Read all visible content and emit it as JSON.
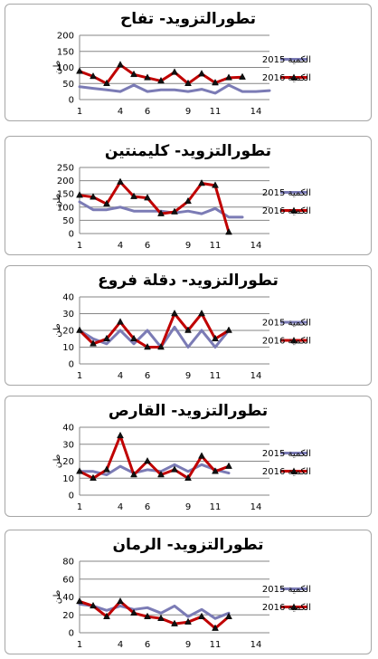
{
  "chart_data": [
    {
      "type": "line",
      "title": "تطورالتزويد- تفاح",
      "ylabel": "طن",
      "ylim": [
        0,
        200
      ],
      "yticks": [
        0,
        50,
        100,
        150,
        200
      ],
      "xticks": [
        1,
        4,
        6,
        9,
        11,
        14
      ],
      "x": [
        1,
        2,
        3,
        4,
        5,
        6,
        7,
        8,
        9,
        10,
        11,
        12,
        13,
        14,
        15
      ],
      "series": [
        {
          "name": "الكمية 2015",
          "color": "#7b7bb5",
          "marker": "none",
          "values": [
            40,
            35,
            30,
            25,
            45,
            25,
            30,
            30,
            25,
            32,
            20,
            45,
            25,
            25,
            28
          ]
        },
        {
          "name": "الكمية 2016",
          "color": "#c00000",
          "marker": "triangle",
          "values": [
            88,
            72,
            50,
            108,
            78,
            68,
            58,
            85,
            50,
            80,
            52,
            68,
            70,
            null,
            null
          ]
        }
      ]
    },
    {
      "type": "line",
      "title": "تطورالتزويد- كليمنتين",
      "ylabel": "طن",
      "ylim": [
        0,
        250
      ],
      "yticks": [
        0,
        50,
        100,
        150,
        200,
        250
      ],
      "xticks": [
        1,
        4,
        6,
        9,
        11,
        14
      ],
      "x": [
        1,
        2,
        3,
        4,
        5,
        6,
        7,
        8,
        9,
        10,
        11,
        12,
        13,
        14,
        15
      ],
      "series": [
        {
          "name": "الكمية 2015",
          "color": "#7b7bb5",
          "marker": "none",
          "values": [
            120,
            90,
            90,
            100,
            85,
            85,
            85,
            78,
            85,
            75,
            95,
            62,
            62,
            null,
            null
          ]
        },
        {
          "name": "الكمية 2016",
          "color": "#c00000",
          "marker": "triangle",
          "values": [
            145,
            138,
            112,
            195,
            140,
            135,
            75,
            82,
            122,
            190,
            182,
            5,
            null,
            null,
            null
          ]
        }
      ]
    },
    {
      "type": "line",
      "title": "تطورالتزويد- دقلة فروع",
      "ylabel": "طن",
      "ylim": [
        0,
        40
      ],
      "yticks": [
        0,
        10,
        20,
        30,
        40
      ],
      "xticks": [
        1,
        4,
        6,
        9,
        11,
        14
      ],
      "x": [
        1,
        2,
        3,
        4,
        5,
        6,
        7,
        8,
        9,
        10,
        11,
        12,
        13,
        14,
        15
      ],
      "series": [
        {
          "name": "الكمية 2015",
          "color": "#7b7bb5",
          "marker": "none",
          "values": [
            20,
            15,
            12,
            20,
            12,
            20,
            10,
            22,
            10,
            20,
            10,
            20,
            null,
            null,
            null
          ]
        },
        {
          "name": "الكمية 2016",
          "color": "#c00000",
          "marker": "triangle",
          "values": [
            20,
            12,
            15,
            25,
            15,
            10,
            10,
            30,
            20,
            30,
            15,
            20,
            null,
            null,
            null
          ]
        }
      ]
    },
    {
      "type": "line",
      "title": "تطورالتزويد- القارص",
      "ylabel": "طن",
      "ylim": [
        0,
        40
      ],
      "yticks": [
        0,
        10,
        20,
        30,
        40
      ],
      "xticks": [
        1,
        4,
        6,
        9,
        11,
        14
      ],
      "x": [
        1,
        2,
        3,
        4,
        5,
        6,
        7,
        8,
        9,
        10,
        11,
        12,
        13,
        14,
        15
      ],
      "series": [
        {
          "name": "الكمية 2015",
          "color": "#7b7bb5",
          "marker": "none",
          "values": [
            14,
            14,
            12,
            17,
            13,
            15,
            14,
            18,
            14,
            18,
            15,
            13,
            null,
            null,
            null
          ]
        },
        {
          "name": "الكمية 2016",
          "color": "#c00000",
          "marker": "triangle",
          "values": [
            14,
            10,
            15,
            35,
            12,
            20,
            12,
            15,
            10,
            23,
            14,
            17,
            null,
            null,
            null
          ]
        }
      ]
    },
    {
      "type": "line",
      "title": "تطورالتزويد- الرمان",
      "ylabel": "طن",
      "ylim": [
        0,
        80
      ],
      "yticks": [
        0,
        20,
        40,
        60,
        80
      ],
      "xticks": [
        1,
        4,
        6,
        9,
        11,
        14
      ],
      "x": [
        1,
        2,
        3,
        4,
        5,
        6,
        7,
        8,
        9,
        10,
        11,
        12,
        13,
        14,
        15
      ],
      "series": [
        {
          "name": "الكمية 2015",
          "color": "#7b7bb5",
          "marker": "none",
          "values": [
            32,
            30,
            25,
            30,
            26,
            28,
            22,
            30,
            18,
            26,
            16,
            22,
            null,
            null,
            null
          ]
        },
        {
          "name": "الكمية 2016",
          "color": "#c00000",
          "marker": "triangle",
          "values": [
            35,
            30,
            18,
            35,
            22,
            18,
            16,
            10,
            12,
            18,
            5,
            18,
            null,
            null,
            null
          ]
        }
      ]
    }
  ]
}
